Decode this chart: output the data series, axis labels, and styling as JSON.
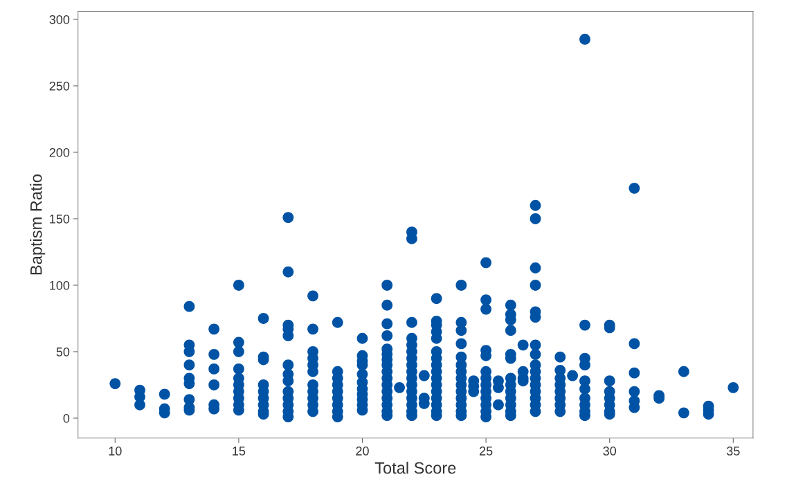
{
  "chart_data": {
    "type": "scatter",
    "xlabel": "Total Score",
    "ylabel": "Baptism Ratio",
    "xlim": [
      8.5,
      35.8
    ],
    "ylim": [
      -15,
      306
    ],
    "xticks": [
      10,
      15,
      20,
      25,
      30,
      35
    ],
    "yticks": [
      0,
      50,
      100,
      150,
      200,
      250,
      300
    ],
    "grid": false,
    "legend": false,
    "marker": "circle",
    "series": [
      {
        "color": "#0053a4",
        "x": [
          10,
          11,
          11,
          11,
          12,
          12,
          12,
          13,
          13,
          13,
          13,
          13,
          13,
          13,
          13,
          13,
          14,
          14,
          14,
          14,
          14,
          14,
          15,
          15,
          15,
          15,
          15,
          15,
          15,
          15,
          15,
          15,
          16,
          16,
          16,
          16,
          16,
          16,
          16,
          16,
          16,
          17,
          17,
          17,
          17,
          17,
          17,
          17,
          17,
          17,
          17,
          17,
          17,
          17,
          18,
          18,
          18,
          18,
          18,
          18,
          18,
          18,
          18,
          18,
          18,
          19,
          19,
          19,
          19,
          19,
          19,
          19,
          19,
          19,
          20,
          20,
          20,
          20,
          20,
          20,
          20,
          20,
          20,
          20,
          20,
          21,
          21,
          21,
          21,
          21,
          21,
          21,
          21,
          21,
          21,
          21,
          21,
          21,
          21,
          21,
          21,
          21.5,
          22,
          22,
          22,
          22,
          22,
          22,
          22,
          22,
          22,
          22,
          22,
          22,
          22,
          22,
          22,
          22,
          22.5,
          22.5,
          22.5,
          23,
          23,
          23,
          23,
          23,
          23,
          23,
          23,
          23,
          23,
          23,
          23,
          23,
          23,
          23,
          23,
          24,
          24,
          24,
          24,
          24,
          24,
          24,
          24,
          24,
          24,
          24,
          24,
          24,
          24,
          24.5,
          24.5,
          24.5,
          25,
          25,
          25,
          25,
          25,
          25,
          25,
          25,
          25,
          25,
          25,
          25,
          25,
          25.5,
          25.5,
          25.5,
          26,
          26,
          26,
          26,
          26,
          26,
          26,
          26,
          26,
          26,
          26,
          26,
          26,
          26.5,
          26.5,
          26.5,
          26.5,
          27,
          27,
          27,
          27,
          27,
          27,
          27,
          27,
          27,
          27,
          27,
          27,
          27,
          27,
          27,
          27,
          28,
          28,
          28,
          28,
          28,
          28,
          28,
          28,
          28.5,
          29,
          29,
          29,
          29,
          29,
          29,
          29,
          29,
          29,
          29,
          30,
          30,
          30,
          30,
          30,
          30,
          30,
          30,
          31,
          31,
          31,
          31,
          31,
          31,
          32,
          32,
          33,
          33,
          34,
          34,
          34,
          35
        ],
        "values": [
          26,
          21,
          16,
          10,
          18,
          7,
          4,
          84,
          55,
          50,
          40,
          30,
          26,
          14,
          8,
          6,
          67,
          48,
          37,
          25,
          10,
          7,
          100,
          57,
          50,
          37,
          30,
          25,
          20,
          15,
          10,
          6,
          75,
          46,
          44,
          25,
          20,
          15,
          10,
          5,
          3,
          151,
          110,
          70,
          67,
          62,
          40,
          33,
          28,
          20,
          15,
          10,
          5,
          1,
          92,
          67,
          50,
          45,
          40,
          35,
          25,
          20,
          15,
          10,
          5,
          72,
          35,
          30,
          25,
          20,
          15,
          10,
          5,
          1,
          60,
          47,
          43,
          40,
          33,
          27,
          22,
          18,
          14,
          10,
          6,
          100,
          85,
          71,
          62,
          52,
          48,
          44,
          40,
          35,
          30,
          25,
          20,
          15,
          10,
          5,
          2,
          23,
          140,
          135,
          72,
          60,
          55,
          50,
          45,
          40,
          35,
          30,
          25,
          20,
          15,
          10,
          5,
          2,
          32,
          15,
          11,
          90,
          73,
          70,
          65,
          60,
          50,
          45,
          40,
          35,
          30,
          25,
          20,
          15,
          10,
          5,
          2,
          100,
          72,
          66,
          56,
          46,
          40,
          35,
          30,
          25,
          20,
          15,
          10,
          5,
          2,
          28,
          24,
          20,
          117,
          89,
          82,
          51,
          47,
          35,
          30,
          25,
          20,
          15,
          10,
          5,
          1,
          28,
          23,
          10,
          85,
          78,
          74,
          66,
          48,
          45,
          30,
          25,
          20,
          15,
          10,
          5,
          2,
          55,
          35,
          30,
          28,
          160,
          150,
          113,
          100,
          80,
          76,
          55,
          48,
          40,
          35,
          30,
          25,
          20,
          15,
          10,
          5,
          46,
          36,
          30,
          25,
          20,
          15,
          10,
          5,
          32,
          285,
          70,
          45,
          40,
          28,
          22,
          15,
          10,
          5,
          2,
          70,
          68,
          28,
          20,
          15,
          10,
          5,
          3,
          173,
          56,
          34,
          20,
          13,
          8,
          17,
          15,
          35,
          4,
          9,
          6,
          3,
          23
        ]
      }
    ]
  }
}
